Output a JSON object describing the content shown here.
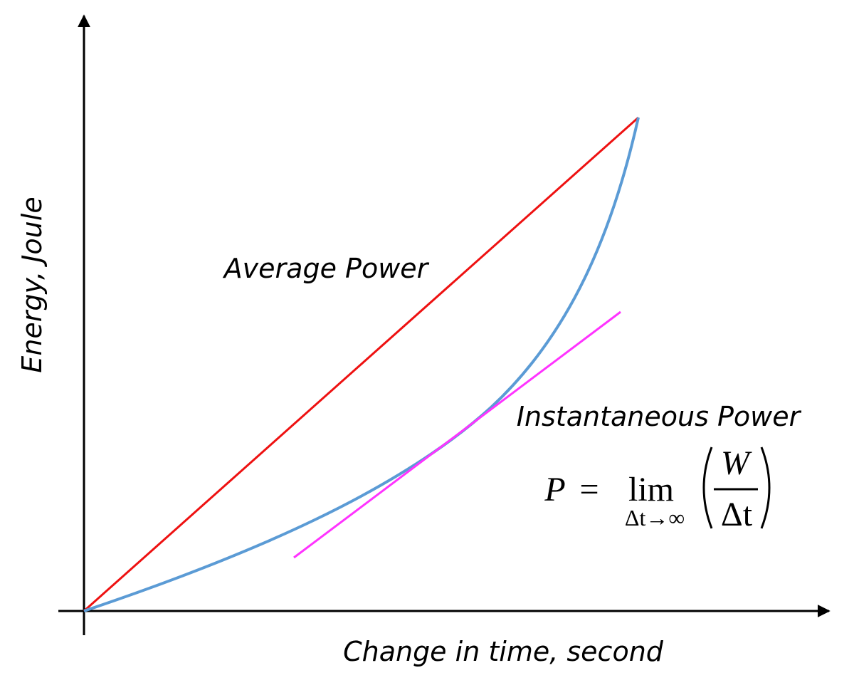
{
  "axes": {
    "y_label": "Energy, Joule",
    "x_label": "Change in time, second"
  },
  "annotations": {
    "average_power": "Average Power",
    "instantaneous_power": "Instantaneous Power"
  },
  "formula": {
    "symbol": "P",
    "equals": "=",
    "operator": "lim",
    "subscript": "Δt→∞",
    "numerator": "W",
    "denominator": "Δt"
  }
}
